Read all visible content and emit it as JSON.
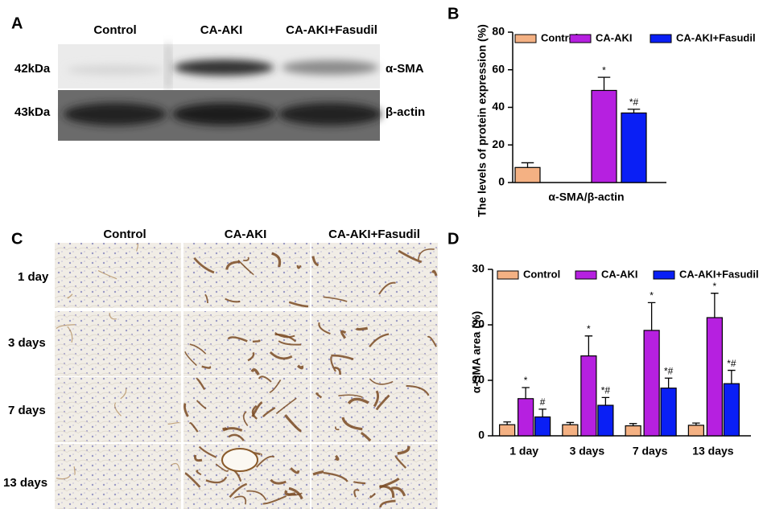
{
  "panel_a": {
    "label": "A",
    "columns": [
      "Control",
      "CA-AKI",
      "CA-AKI+Fasudil"
    ],
    "rows": [
      {
        "size": "42kDa",
        "protein": "α-SMA"
      },
      {
        "size": "43kDa",
        "protein": "β-actin"
      }
    ]
  },
  "panel_c": {
    "label": "C",
    "columns": [
      "Control",
      "CA-AKI",
      "CA-AKI+Fasudil"
    ],
    "rows": [
      "1 day",
      "3 days",
      "7 days",
      "13 days"
    ]
  },
  "chart_data": [
    {
      "type": "bar",
      "label": "B",
      "y_label": "The levels of protein expression (%)",
      "categories": [
        "α-SMA/β-actin"
      ],
      "series": [
        {
          "name": "Control",
          "color": "#f4b183",
          "values": [
            8
          ],
          "errors": [
            2.5
          ],
          "annotations": [
            null
          ]
        },
        {
          "name": "CA-AKI",
          "color": "#b620e0",
          "values": [
            49
          ],
          "errors": [
            7
          ],
          "annotations": [
            "*"
          ]
        },
        {
          "name": "CA-AKI+Fasudil",
          "color": "#0a1ff5",
          "values": [
            37
          ],
          "errors": [
            2
          ],
          "annotations": [
            "*#"
          ]
        }
      ],
      "ylim": [
        0,
        80
      ],
      "yticks": [
        0,
        20,
        40,
        60,
        80
      ],
      "legend": "top"
    },
    {
      "type": "bar",
      "label": "D",
      "y_label": "α-SMA area (%)",
      "categories": [
        "1 day",
        "3 days",
        "7 days",
        "13 days"
      ],
      "series": [
        {
          "name": "Control",
          "color": "#f4b183",
          "values": [
            2,
            2,
            1.8,
            1.9
          ],
          "errors": [
            0.5,
            0.4,
            0.4,
            0.4
          ],
          "annotations": [
            null,
            null,
            null,
            null
          ]
        },
        {
          "name": "CA-AKI",
          "color": "#b620e0",
          "values": [
            6.7,
            14.4,
            19,
            21.3
          ],
          "errors": [
            2,
            3.6,
            5,
            4.4
          ],
          "annotations": [
            "*",
            "*",
            "*",
            "*"
          ]
        },
        {
          "name": "CA-AKI+Fasudil",
          "color": "#0a1ff5",
          "values": [
            3.4,
            5.5,
            8.6,
            9.4
          ],
          "errors": [
            1.4,
            1.4,
            1.8,
            2.4
          ],
          "annotations": [
            "#",
            "*#",
            "*#",
            "*#"
          ]
        }
      ],
      "ylim": [
        0,
        30
      ],
      "yticks": [
        0,
        10,
        20,
        30
      ],
      "legend": "top"
    }
  ]
}
